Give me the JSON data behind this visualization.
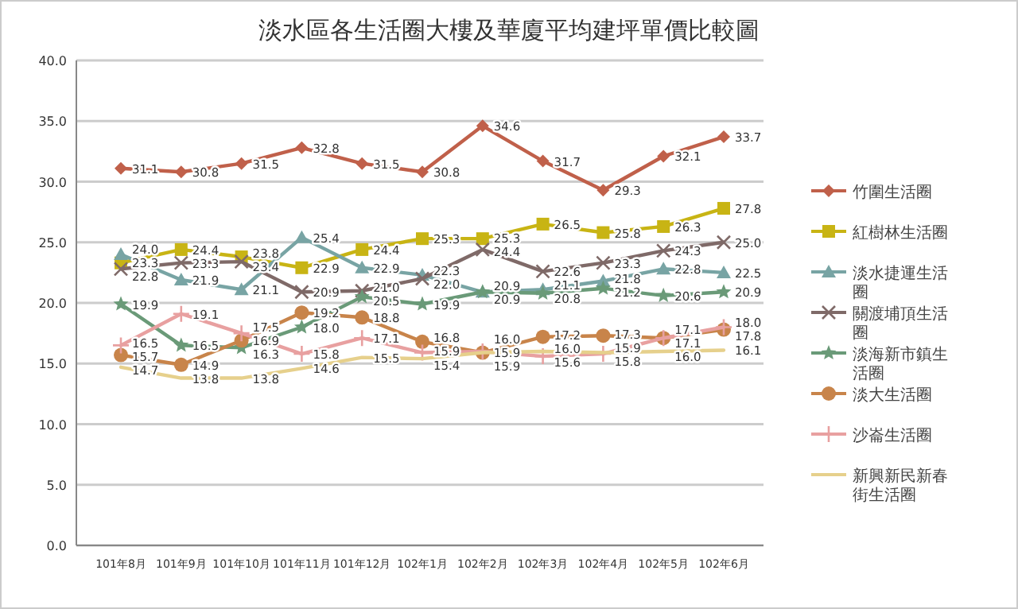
{
  "chart_data": {
    "type": "line",
    "title": "淡水區各生活圈大樓及華廈平均建坪單價比較圖",
    "categories": [
      "101年8月",
      "101年9月",
      "101年10月",
      "101年11月",
      "101年12月",
      "102年1月",
      "102年2月",
      "102年3月",
      "102年4月",
      "102年5月",
      "102年6月"
    ],
    "ylim": [
      0,
      40
    ],
    "yticks": [
      {
        "value": 0,
        "label": "0.0"
      },
      {
        "value": 5,
        "label": "5.0"
      },
      {
        "value": 10,
        "label": "10.0"
      },
      {
        "value": 15,
        "label": "15.0"
      },
      {
        "value": 20,
        "label": "20.0"
      },
      {
        "value": 25,
        "label": "25.0"
      },
      {
        "value": 30,
        "label": "30.0"
      },
      {
        "value": 35,
        "label": "35.0"
      },
      {
        "value": 40,
        "label": "40.0"
      }
    ],
    "grid": "y",
    "legend": "right",
    "series": [
      {
        "name": "竹圍生活圈",
        "color": "#c0604a",
        "marker": "diamond",
        "values": [
          31.1,
          30.8,
          31.5,
          32.8,
          31.5,
          30.8,
          34.6,
          31.7,
          29.3,
          32.1,
          33.7
        ],
        "value_labels": [
          "31.1",
          "30.8",
          "31.5",
          "32.8",
          "31.5",
          "30.8",
          "34.6",
          "31.7",
          "29.3",
          "32.1",
          "33.7"
        ]
      },
      {
        "name": "紅樹林生活圈",
        "color": "#c8b414",
        "marker": "square",
        "values": [
          23.3,
          24.4,
          23.8,
          22.9,
          24.4,
          25.3,
          25.3,
          26.5,
          25.8,
          26.3,
          27.8
        ],
        "value_labels": [
          "23.3",
          "24.4",
          "23.8",
          "22.9",
          "24.4",
          "25.3",
          "25.3",
          "26.5",
          "25.8",
          "26.3",
          "27.8"
        ]
      },
      {
        "name": "淡水捷運生活圈",
        "color": "#78a4a4",
        "marker": "triangle",
        "values": [
          24.0,
          21.9,
          21.1,
          25.4,
          22.9,
          22.3,
          20.9,
          21.1,
          21.8,
          22.8,
          22.5
        ],
        "value_labels": [
          "24.0",
          "21.9",
          "21.1",
          "25.4",
          "22.9",
          "22.3",
          "20.9",
          "21.1",
          "21.8",
          "22.8",
          "22.5"
        ]
      },
      {
        "name": "關渡埔頂生活圈",
        "color": "#7f6a68",
        "marker": "cross",
        "values": [
          22.8,
          23.3,
          23.4,
          20.9,
          21.0,
          22.0,
          24.4,
          22.6,
          23.3,
          24.3,
          25.0
        ],
        "value_labels": [
          "22.8",
          "23.3",
          "23.4",
          "20.9",
          "21.0",
          "22.0",
          "24.4",
          "22.6",
          "23.3",
          "24.3",
          "25.0"
        ]
      },
      {
        "name": "淡海新市鎮生活圈",
        "color": "#6a9a78",
        "marker": "star",
        "values": [
          19.9,
          16.5,
          16.3,
          18.0,
          20.5,
          19.9,
          20.9,
          20.8,
          21.2,
          20.6,
          20.9
        ],
        "value_labels": [
          "19.9",
          "16.5",
          "16.3",
          "18.0",
          "20.5",
          "19.9",
          "20.9",
          "20.8",
          "21.2",
          "20.6",
          "20.9"
        ]
      },
      {
        "name": "淡大生活圈",
        "color": "#c8844a",
        "marker": "circle",
        "values": [
          15.7,
          14.9,
          16.9,
          19.2,
          18.8,
          16.8,
          15.9,
          17.2,
          17.3,
          17.1,
          17.8
        ],
        "value_labels": [
          "15.7",
          "14.9",
          "16.9",
          "19.2",
          "18.8",
          "16.8",
          "15.9",
          "17.2",
          "17.3",
          "17.1",
          "17.8"
        ]
      },
      {
        "name": "沙崙生活圈",
        "color": "#e8a0a0",
        "marker": "plus",
        "values": [
          16.5,
          19.1,
          17.5,
          15.8,
          17.1,
          15.9,
          16.0,
          15.6,
          15.8,
          17.1,
          18.0
        ],
        "value_labels": [
          "16.5",
          "19.1",
          "17.5",
          "15.8",
          "17.1",
          "15.9",
          "16.0",
          "15.6",
          "15.8",
          "17.1",
          "18.0"
        ]
      },
      {
        "name": "新興新民新春街生活圈",
        "color": "#e6d08c",
        "marker": "none",
        "values": [
          14.7,
          13.8,
          13.8,
          14.6,
          15.5,
          15.4,
          15.9,
          16.0,
          15.9,
          16.0,
          16.1
        ],
        "value_labels": [
          "14.7",
          "13.8",
          "13.8",
          "14.6",
          "15.5",
          "15.4",
          "15.9",
          "16.0",
          "15.9",
          "16.0",
          "16.1"
        ]
      }
    ]
  }
}
